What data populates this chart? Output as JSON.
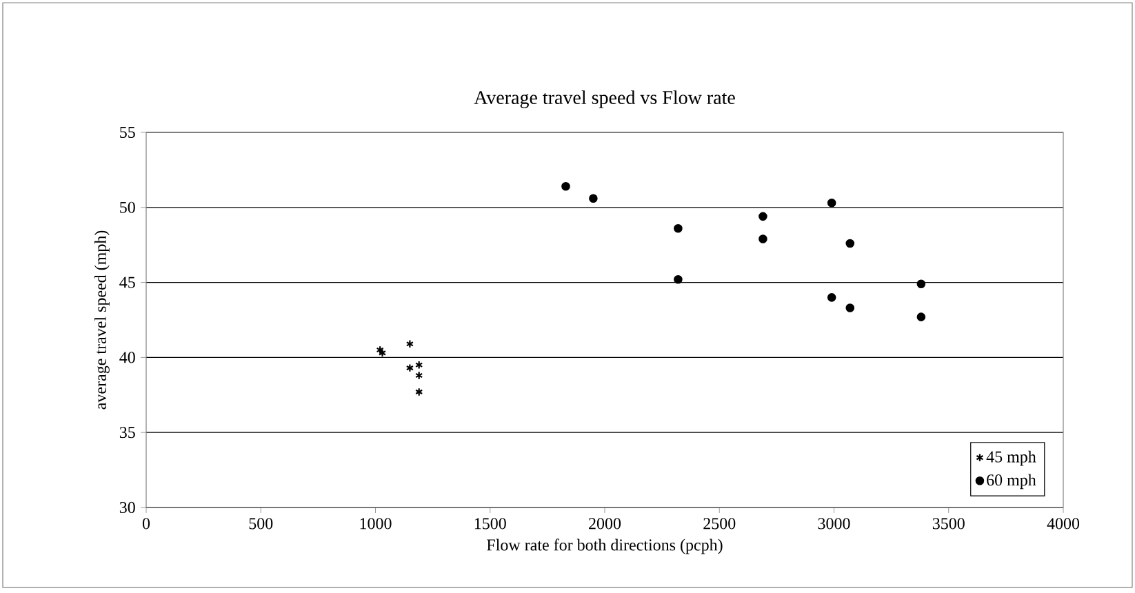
{
  "chart_data": {
    "type": "scatter",
    "title": "Average travel speed vs Flow rate",
    "xlabel": "Flow rate for both directions (pcph)",
    "ylabel": "average travel speed (mph)",
    "xlim": [
      0,
      4000
    ],
    "xticks": [
      0,
      500,
      1000,
      1500,
      2000,
      2500,
      3000,
      3500,
      4000
    ],
    "ylim": [
      30,
      55
    ],
    "yticks": [
      30,
      35,
      40,
      45,
      50,
      55
    ],
    "grid": "y",
    "legend": "bottom right",
    "series": [
      {
        "name": "45 mph",
        "color": "#000000",
        "marker": "cross",
        "x": [
          1020,
          1030,
          1150,
          1150,
          1190,
          1190,
          1190
        ],
        "values": [
          40.5,
          40.3,
          40.9,
          39.3,
          39.5,
          38.8,
          37.7
        ]
      },
      {
        "name": "60 mph",
        "color": "#000000",
        "marker": "circle",
        "x": [
          1830,
          1950,
          2320,
          2320,
          2690,
          2690,
          2990,
          2990,
          3070,
          3070,
          3380,
          3380
        ],
        "values": [
          51.4,
          50.6,
          48.6,
          45.2,
          49.4,
          47.9,
          50.3,
          44.0,
          47.6,
          43.3,
          44.9,
          42.7
        ]
      }
    ]
  }
}
